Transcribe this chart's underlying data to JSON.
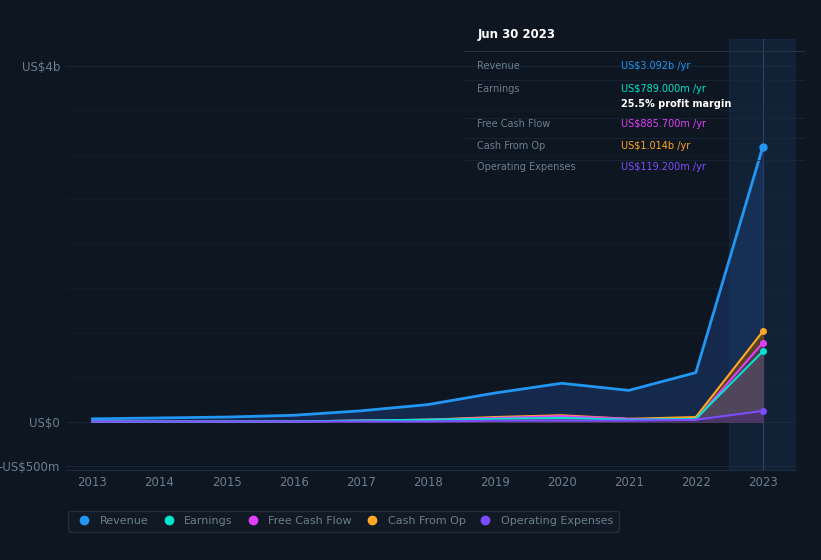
{
  "bg_color": "#0e1621",
  "plot_bg_color": "#0e1621",
  "grid_color": "#1c2d3f",
  "text_color": "#6b7f8f",
  "years": [
    2013,
    2014,
    2015,
    2016,
    2017,
    2018,
    2019,
    2020,
    2021,
    2022,
    2023
  ],
  "revenue": [
    0.03,
    0.04,
    0.05,
    0.07,
    0.12,
    0.19,
    0.32,
    0.43,
    0.35,
    0.55,
    3.092
  ],
  "earnings": [
    0.0,
    0.0,
    0.0,
    0.0,
    0.01,
    0.02,
    0.03,
    0.04,
    0.02,
    0.03,
    0.789
  ],
  "free_cash": [
    0.0,
    0.0,
    0.0,
    0.0,
    0.01,
    0.02,
    0.04,
    0.06,
    0.03,
    0.02,
    0.886
  ],
  "cash_from_op": [
    0.0,
    0.0,
    0.0,
    0.0,
    0.01,
    0.02,
    0.05,
    0.07,
    0.03,
    0.05,
    1.014
  ],
  "op_expenses": [
    0.0,
    0.0,
    0.0,
    0.0,
    0.0,
    0.0,
    0.01,
    0.01,
    0.01,
    0.02,
    0.119
  ],
  "revenue_color": "#2196f3",
  "earnings_color": "#00e5cc",
  "free_cash_color": "#e040fb",
  "cash_from_op_color": "#ffa726",
  "op_expenses_color": "#7c4dff",
  "revenue_fill": "#1a3a6e",
  "earnings_fill": "#3a7a70",
  "free_cash_fill": "#5a3060",
  "cash_from_op_fill": "#6a4a10",
  "op_expenses_fill": "#4a2a70",
  "highlight_band_color": "#1a3a60",
  "ylim_min": -0.55,
  "ylim_max": 4.3,
  "yticks": [
    -0.5,
    0.0,
    4.0
  ],
  "ytick_labels": [
    "-US$500m",
    "US$0",
    "US$4b"
  ],
  "year_start": 2013,
  "year_end": 2023,
  "tooltip_date": "Jun 30 2023",
  "tooltip_revenue": "US$3.092b",
  "tooltip_earnings": "US$789.000m",
  "tooltip_profit_margin": "25.5%",
  "tooltip_free_cash": "US$885.700m",
  "tooltip_cash_from_op": "US$1.014b",
  "tooltip_op_expenses": "US$119.200m",
  "legend_labels": [
    "Revenue",
    "Earnings",
    "Free Cash Flow",
    "Cash From Op",
    "Operating Expenses"
  ],
  "legend_colors": [
    "#2196f3",
    "#00e5cc",
    "#e040fb",
    "#ffa726",
    "#7c4dff"
  ]
}
